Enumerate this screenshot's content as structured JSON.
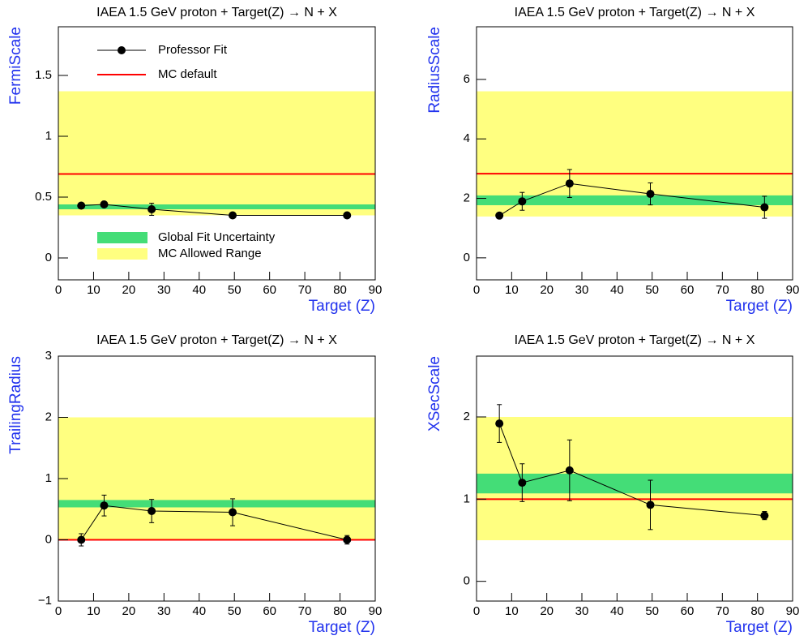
{
  "chart_data": [
    {
      "type": "line",
      "title": "IAEA 1.5 GeV proton + Target(Z) → N + X",
      "x_label": "Target (Z)",
      "y_label": "FermiScale",
      "xlim": [
        0,
        90
      ],
      "xticks": [
        0,
        10,
        20,
        30,
        40,
        50,
        60,
        70,
        80,
        90
      ],
      "ylim": [
        -0.18,
        1.9
      ],
      "yticks": [
        0,
        0.5,
        1,
        1.5
      ],
      "x": [
        6.5,
        13,
        26.5,
        49.5,
        82
      ],
      "series": [
        {
          "name": "Professor Fit",
          "color": "#000000",
          "values": [
            0.43,
            0.44,
            0.4,
            0.35,
            0.35
          ],
          "errors": [
            0.02,
            0.02,
            0.05,
            0.01,
            0.01
          ]
        }
      ],
      "reference_line": {
        "name": "MC default",
        "color": "#ff0000",
        "value": 0.69
      },
      "global_fit_band": {
        "name": "Global Fit Uncertainty",
        "color": "#44dd77",
        "range": [
          0.4,
          0.44
        ]
      },
      "allowed_range": {
        "name": "MC Allowed Range",
        "color": "#ffff80",
        "range": [
          0.35,
          1.37
        ]
      },
      "legend": true
    },
    {
      "type": "line",
      "title": "IAEA 1.5 GeV proton + Target(Z) → N + X",
      "x_label": "Target (Z)",
      "y_label": "RadiusScale",
      "xlim": [
        0,
        90
      ],
      "xticks": [
        0,
        10,
        20,
        30,
        40,
        50,
        60,
        70,
        80,
        90
      ],
      "ylim": [
        -0.74,
        7.77
      ],
      "yticks": [
        0,
        2,
        4,
        6
      ],
      "x": [
        6.5,
        13,
        26.5,
        49.5,
        82
      ],
      "series": [
        {
          "color": "#000000",
          "values": [
            1.42,
            1.9,
            2.5,
            2.15,
            1.7
          ],
          "errors": [
            0.05,
            0.3,
            0.47,
            0.37,
            0.37
          ]
        }
      ],
      "reference_line": {
        "color": "#ff0000",
        "value": 2.83
      },
      "global_fit_band": {
        "color": "#44dd77",
        "range": [
          1.77,
          2.1
        ]
      },
      "allowed_range": {
        "color": "#ffff80",
        "range": [
          1.39,
          5.6
        ]
      },
      "legend": false
    },
    {
      "type": "line",
      "title": "IAEA 1.5 GeV proton + Target(Z) → N + X",
      "x_label": "Target (Z)",
      "y_label": "TrailingRadius",
      "xlim": [
        0,
        90
      ],
      "xticks": [
        0,
        10,
        20,
        30,
        40,
        50,
        60,
        70,
        80,
        90
      ],
      "ylim": [
        -1,
        3
      ],
      "yticks": [
        {
          "value": -1,
          "label": "−1"
        },
        0,
        1,
        2,
        3
      ],
      "x": [
        6.5,
        13,
        26.5,
        49.5,
        82
      ],
      "series": [
        {
          "color": "#000000",
          "values": [
            0,
            0.56,
            0.47,
            0.45,
            0
          ],
          "errors": [
            0.1,
            0.17,
            0.19,
            0.22,
            0.07
          ]
        }
      ],
      "reference_line": {
        "color": "#ff0000",
        "value": 0
      },
      "global_fit_band": {
        "color": "#44dd77",
        "range": [
          0.53,
          0.65
        ]
      },
      "allowed_range": {
        "color": "#ffff80",
        "range": [
          0,
          2.0
        ]
      },
      "legend": false
    },
    {
      "type": "line",
      "title": "IAEA 1.5 GeV proton + Target(Z) → N + X",
      "x_label": "Target (Z)",
      "y_label": "XSecScale",
      "xlim": [
        0,
        90
      ],
      "xticks": [
        0,
        10,
        20,
        30,
        40,
        50,
        60,
        70,
        80,
        90
      ],
      "ylim": [
        -0.24,
        2.74
      ],
      "yticks": [
        0,
        1,
        2
      ],
      "x": [
        6.5,
        13,
        26.5,
        49.5,
        82
      ],
      "series": [
        {
          "color": "#000000",
          "values": [
            1.92,
            1.2,
            1.35,
            0.93,
            0.8
          ],
          "errors": [
            0.23,
            0.23,
            0.37,
            0.3,
            0.05
          ]
        }
      ],
      "reference_line": {
        "color": "#ff0000",
        "value": 1.0
      },
      "global_fit_band": {
        "color": "#44dd77",
        "range": [
          1.07,
          1.31
        ]
      },
      "allowed_range": {
        "color": "#ffff80",
        "range": [
          0.5,
          2.0
        ]
      },
      "legend": false
    }
  ]
}
